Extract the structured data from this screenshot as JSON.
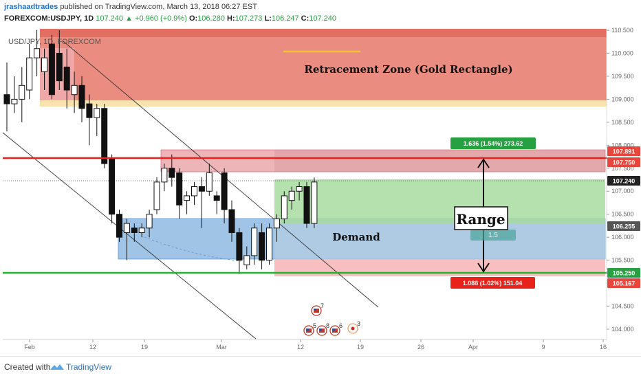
{
  "header": {
    "author": "jrashaadtrades",
    "published_text": "published on TradingView.com, March 13, 2018 06:27 EST",
    "symbol": "FOREXCOM:USDJPY, 1D",
    "last_price": "107.240",
    "change": "▲ +0.960 (+0.9%)",
    "o_label": "O:",
    "o_value": "106.280",
    "h_label": "H:",
    "h_value": "107.273",
    "l_label": "L:",
    "l_value": "106.247",
    "c_label": "C:",
    "c_value": "107.240"
  },
  "chart_data": {
    "type": "candlestick",
    "legend_text": "USD/JPY, 1D, FOREXCOM",
    "y_range": [
      103.8,
      110.6
    ],
    "price_ticks": [
      "110.500",
      "110.000",
      "109.500",
      "109.000",
      "108.500",
      "108.000",
      "107.500",
      "107.000",
      "106.500",
      "106.000",
      "105.500",
      "105.000",
      "104.500",
      "104.000"
    ],
    "x_ticks": [
      "Feb",
      "12",
      "19",
      "Mar",
      "12",
      "19",
      "26",
      "Apr",
      "9",
      "16"
    ],
    "candles": [
      {
        "o": 109.1,
        "h": 109.8,
        "l": 108.3,
        "c": 108.9
      },
      {
        "o": 108.9,
        "h": 109.5,
        "l": 108.7,
        "c": 109.0
      },
      {
        "o": 109.0,
        "h": 109.7,
        "l": 108.5,
        "c": 109.3
      },
      {
        "o": 109.2,
        "h": 110.2,
        "l": 109.0,
        "c": 109.9
      },
      {
        "o": 109.9,
        "h": 110.5,
        "l": 109.5,
        "c": 110.1
      },
      {
        "o": 109.6,
        "h": 110.1,
        "l": 109.2,
        "c": 109.9
      },
      {
        "o": 110.2,
        "h": 110.4,
        "l": 109.0,
        "c": 109.1
      },
      {
        "o": 110.0,
        "h": 110.5,
        "l": 109.2,
        "c": 109.4
      },
      {
        "o": 109.7,
        "h": 110.1,
        "l": 108.8,
        "c": 109.2
      },
      {
        "o": 109.1,
        "h": 109.6,
        "l": 108.7,
        "c": 109.3
      },
      {
        "o": 109.3,
        "h": 109.5,
        "l": 108.5,
        "c": 108.8
      },
      {
        "o": 108.9,
        "h": 109.1,
        "l": 108.0,
        "c": 108.6
      },
      {
        "o": 108.6,
        "h": 108.9,
        "l": 108.2,
        "c": 108.8
      },
      {
        "o": 108.8,
        "h": 108.9,
        "l": 107.5,
        "c": 107.6
      },
      {
        "o": 107.7,
        "h": 107.8,
        "l": 106.3,
        "c": 106.5
      },
      {
        "o": 106.5,
        "h": 106.6,
        "l": 105.9,
        "c": 106.0
      },
      {
        "o": 106.1,
        "h": 106.4,
        "l": 105.5,
        "c": 106.3
      },
      {
        "o": 106.2,
        "h": 106.3,
        "l": 105.9,
        "c": 106.1
      },
      {
        "o": 106.1,
        "h": 106.3,
        "l": 106.0,
        "c": 106.2
      },
      {
        "o": 106.2,
        "h": 106.6,
        "l": 106.0,
        "c": 106.5
      },
      {
        "o": 106.6,
        "h": 107.3,
        "l": 106.5,
        "c": 107.2
      },
      {
        "o": 107.2,
        "h": 107.6,
        "l": 107.0,
        "c": 107.5
      },
      {
        "o": 107.5,
        "h": 107.8,
        "l": 107.1,
        "c": 107.3
      },
      {
        "o": 107.4,
        "h": 107.5,
        "l": 106.4,
        "c": 106.7
      },
      {
        "o": 106.8,
        "h": 107.0,
        "l": 106.5,
        "c": 106.9
      },
      {
        "o": 106.9,
        "h": 107.2,
        "l": 106.7,
        "c": 107.1
      },
      {
        "o": 107.1,
        "h": 107.3,
        "l": 106.2,
        "c": 107.0
      },
      {
        "o": 107.0,
        "h": 107.6,
        "l": 106.9,
        "c": 107.4
      },
      {
        "o": 106.9,
        "h": 107.0,
        "l": 106.5,
        "c": 106.8
      },
      {
        "o": 107.4,
        "h": 107.5,
        "l": 106.3,
        "c": 106.6
      },
      {
        "o": 106.6,
        "h": 106.8,
        "l": 105.9,
        "c": 106.1
      },
      {
        "o": 106.1,
        "h": 106.2,
        "l": 105.2,
        "c": 105.5
      },
      {
        "o": 105.4,
        "h": 105.8,
        "l": 105.3,
        "c": 105.6
      },
      {
        "o": 105.6,
        "h": 106.3,
        "l": 105.4,
        "c": 106.2
      },
      {
        "o": 106.1,
        "h": 106.3,
        "l": 105.3,
        "c": 105.5
      },
      {
        "o": 105.5,
        "h": 106.3,
        "l": 105.4,
        "c": 106.2
      },
      {
        "o": 106.2,
        "h": 106.5,
        "l": 105.9,
        "c": 106.4
      },
      {
        "o": 106.4,
        "h": 107.0,
        "l": 106.3,
        "c": 106.9
      },
      {
        "o": 106.8,
        "h": 107.1,
        "l": 106.6,
        "c": 107.0
      },
      {
        "o": 107.0,
        "h": 107.2,
        "l": 106.8,
        "c": 107.1
      },
      {
        "o": 107.1,
        "h": 107.2,
        "l": 106.2,
        "c": 106.3
      },
      {
        "o": 106.3,
        "h": 107.3,
        "l": 106.2,
        "c": 107.2
      }
    ],
    "annotations": {
      "retracement_zone": "Retracement Zone (Gold Rectangle)",
      "demand": "Demand",
      "range": "Range",
      "target_label": "1.636 (1.54%) 273.62",
      "stop_label": "1.088 (1.02%) 151.04",
      "rr_label": "1.5",
      "rr_faint": "0.00 / 1.5"
    },
    "price_badges": [
      {
        "value": "107.891",
        "color": "#e8463c"
      },
      {
        "value": "107.750",
        "color": "#e8463c"
      },
      {
        "value": "107.240",
        "color": "#222222"
      },
      {
        "value": "106.255",
        "color": "#555555"
      },
      {
        "value": "105.250",
        "color": "#26a041"
      },
      {
        "value": "105.167",
        "color": "#e8463c"
      }
    ],
    "events": [
      {
        "label": "7",
        "icon": "us-flag-event-icon"
      },
      {
        "label": "5",
        "icon": "us-flag-event-icon"
      },
      {
        "label": "8",
        "icon": "us-flag-event-icon"
      },
      {
        "label": "6",
        "icon": "us-flag-event-icon"
      },
      {
        "label": "3",
        "icon": "jp-event-icon"
      }
    ],
    "colors": {
      "up": "#ffffff",
      "down": "#111111",
      "red_line": "#e8221a",
      "green_line": "#22b32c",
      "retracement_fill": "#e8786a",
      "demand_fill": "#7fb0dc",
      "profit_fill": "#a8dca0",
      "loss_fill": "#f6b8b8"
    }
  },
  "footer": {
    "created_with": "Created with",
    "brand": "TradingView"
  }
}
